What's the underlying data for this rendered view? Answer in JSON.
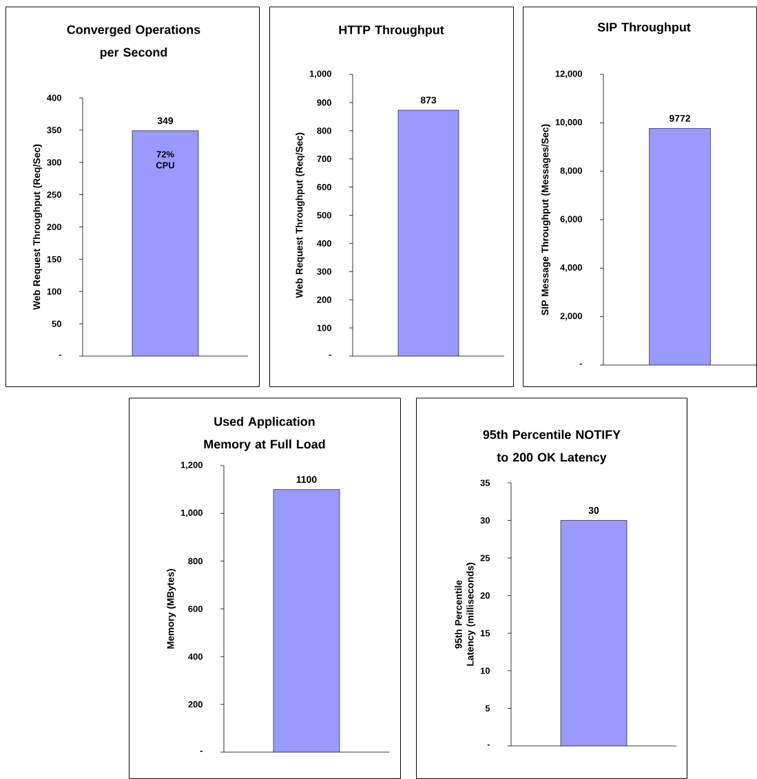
{
  "chart_data": [
    {
      "type": "bar",
      "title": "Converged Operations per Second",
      "ylabel": "Web Request Throughput (Req/Sec)",
      "categories": [
        null
      ],
      "values": [
        349
      ],
      "color": "#9999ff",
      "data_labels": true,
      "ylim": [
        0,
        400
      ],
      "yticks": [
        {
          "value": 0,
          "label": "-"
        },
        50,
        100,
        150,
        200,
        250,
        300,
        350,
        400
      ],
      "annotations": [
        "72% CPU"
      ]
    },
    {
      "type": "bar",
      "title": "HTTP Throughput",
      "ylabel": "Web Request Throughput (Req/Sec)",
      "categories": [
        null
      ],
      "values": [
        873
      ],
      "color": "#9999ff",
      "data_labels": true,
      "ylim": [
        0,
        1000
      ],
      "yticks": [
        {
          "value": 0,
          "label": "-"
        },
        100,
        200,
        300,
        400,
        500,
        600,
        700,
        800,
        900,
        {
          "value": 1000,
          "label": "1,000"
        }
      ]
    },
    {
      "type": "bar",
      "title": "SIP Throughput",
      "ylabel": "SIP Message Throughput (Messages/Sec)",
      "categories": [
        null
      ],
      "values": [
        9772
      ],
      "color": "#9999ff",
      "data_labels": true,
      "ylim": [
        0,
        12000
      ],
      "yticks": [
        {
          "value": 0,
          "label": "-"
        },
        {
          "value": 2000,
          "label": "2,000"
        },
        {
          "value": 4000,
          "label": "4,000"
        },
        {
          "value": 6000,
          "label": "6,000"
        },
        {
          "value": 8000,
          "label": "8,000"
        },
        {
          "value": 10000,
          "label": "10,000"
        },
        {
          "value": 12000,
          "label": "12,000"
        }
      ]
    },
    {
      "type": "bar",
      "title": "Used Application Memory at Full Load",
      "ylabel": "Memory (MBytes)",
      "categories": [
        null
      ],
      "values": [
        1100
      ],
      "color": "#9999ff",
      "data_labels": true,
      "ylim": [
        0,
        1200
      ],
      "yticks": [
        {
          "value": 0,
          "label": "-"
        },
        200,
        400,
        600,
        800,
        {
          "value": 1000,
          "label": "1,000"
        },
        {
          "value": 1200,
          "label": "1,200"
        }
      ]
    },
    {
      "type": "bar",
      "title": "95th Percentile NOTIFY to 200 OK Latency",
      "ylabel": "95th Percentile Latency (milliseconds)",
      "categories": [
        null
      ],
      "values": [
        30
      ],
      "color": "#9999ff",
      "data_labels": true,
      "ylim": [
        0,
        35
      ],
      "yticks": [
        {
          "value": 0,
          "label": "-"
        },
        5,
        10,
        15,
        20,
        25,
        30,
        35
      ]
    }
  ]
}
